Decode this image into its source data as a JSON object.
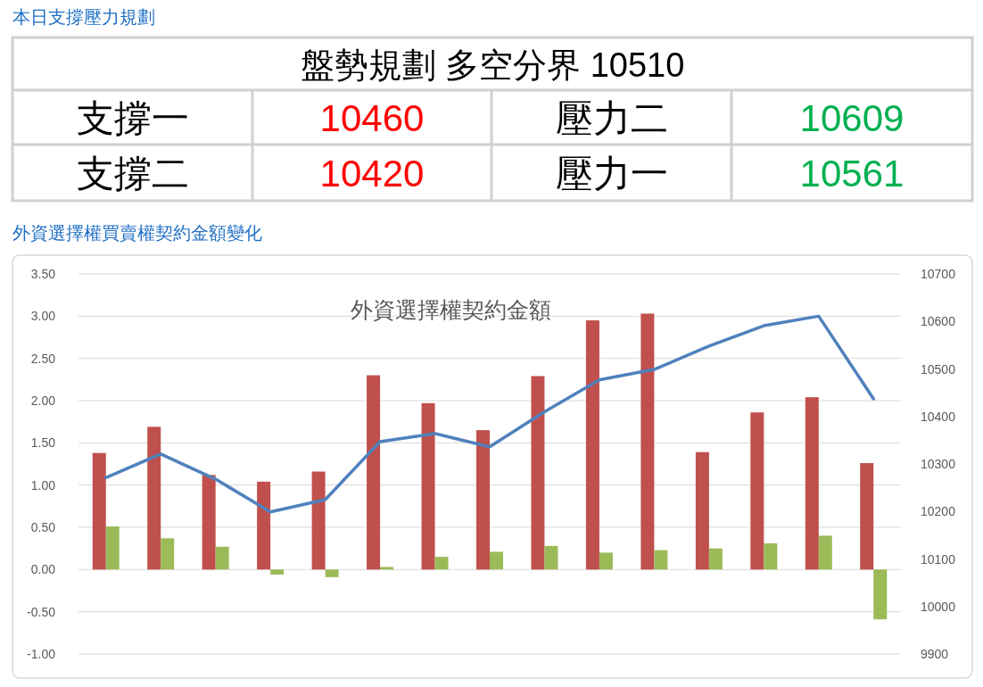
{
  "chart_data": [
    {
      "type": "other",
      "title": "本日支撐壓力規劃",
      "annotations": [
        "盤勢規劃 多空分界 10510",
        "支撐一",
        "10460",
        "壓力二",
        "10609",
        "支撐二",
        "10420",
        "壓力一",
        "10561"
      ],
      "colors": [
        "#000000",
        "#000000",
        "#ff0000",
        "#000000",
        "#00b050",
        "#000000",
        "#ff0000",
        "#000000",
        "#00b050"
      ]
    },
    {
      "type": "bar",
      "title": "外資選擇權買賣權契約金額變化",
      "subtitle": "外資選擇權契約金額",
      "categories": [
        null,
        null,
        null,
        null,
        null,
        null,
        null,
        null,
        null,
        null,
        null,
        null,
        null,
        null,
        null
      ],
      "series": [
        {
          "type": "bar",
          "color": "#c0504d",
          "values": [
            1.38,
            1.69,
            1.12,
            1.04,
            1.16,
            2.3,
            1.97,
            1.65,
            2.29,
            2.95,
            3.03,
            1.39,
            1.86,
            2.04,
            1.26
          ]
        },
        {
          "type": "bar",
          "color": "#9bbb59",
          "values": [
            0.51,
            0.37,
            0.27,
            -0.06,
            -0.09,
            0.03,
            0.15,
            0.21,
            0.28,
            0.2,
            0.23,
            0.25,
            0.31,
            0.4,
            -0.59
          ]
        },
        {
          "type": "line",
          "axis": "y2",
          "color": "#4f81bd",
          "values": [
            10271,
            10321,
            10268,
            10199,
            10225,
            10347,
            10364,
            10336,
            10410,
            10477,
            10499,
            10548,
            10591,
            10611,
            10437
          ]
        }
      ],
      "ylim": [
        -1,
        3.5
      ],
      "yticks": [
        {
          "value": 3.5,
          "label": "3.50"
        },
        {
          "value": 3.0,
          "label": "3.00"
        },
        {
          "value": 2.5,
          "label": "2.50"
        },
        {
          "value": 2.0,
          "label": "2.00"
        },
        {
          "value": 1.5,
          "label": "1.50"
        },
        {
          "value": 1.0,
          "label": "1.00"
        },
        {
          "value": 0.5,
          "label": "0.50"
        },
        {
          "value": 0,
          "label": "0.00"
        },
        {
          "value": -0.5,
          "label": "-0.50"
        },
        {
          "value": -1,
          "label": "-1.00"
        }
      ],
      "y2lim": [
        9900,
        10700
      ],
      "y2ticks": [
        10700,
        10600,
        10500,
        10400,
        10300,
        10200,
        10100,
        10000,
        9900
      ],
      "grid": "y"
    }
  ]
}
